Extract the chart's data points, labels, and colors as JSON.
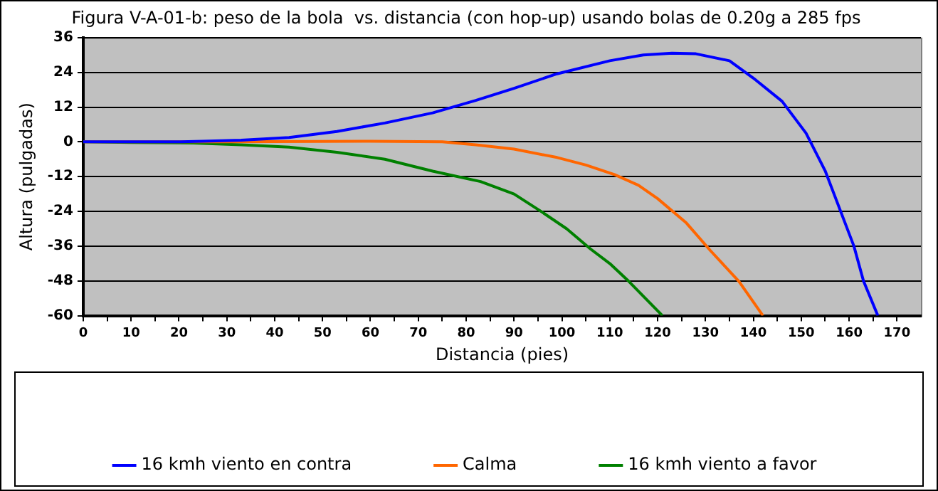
{
  "chart_data": {
    "type": "line",
    "title": "Figura V-A-01-b: peso de la bola  vs. distancia (con hop-up) usando bolas de 0.20g a 285 fps",
    "xlabel": "Distancia (pies)",
    "ylabel": "Altura (pulgadas)",
    "xlim": [
      0,
      175
    ],
    "xticks": [
      0,
      {
        "value": 5,
        "label": null
      },
      10,
      {
        "value": 15,
        "label": null
      },
      20,
      {
        "value": 25,
        "label": null
      },
      30,
      {
        "value": 35,
        "label": null
      },
      40,
      {
        "value": 45,
        "label": null
      },
      50,
      {
        "value": 55,
        "label": null
      },
      60,
      {
        "value": 65,
        "label": null
      },
      70,
      {
        "value": 75,
        "label": null
      },
      80,
      {
        "value": 85,
        "label": null
      },
      90,
      {
        "value": 95,
        "label": null
      },
      100,
      {
        "value": 105,
        "label": null
      },
      110,
      {
        "value": 115,
        "label": null
      },
      120,
      {
        "value": 125,
        "label": null
      },
      130,
      {
        "value": 135,
        "label": null
      },
      140,
      {
        "value": 145,
        "label": null
      },
      150,
      {
        "value": 155,
        "label": null
      },
      160,
      {
        "value": 165,
        "label": null
      },
      170
    ],
    "ylim": [
      -60,
      36
    ],
    "yticks": [
      -60,
      -48,
      -36,
      -24,
      -12,
      0,
      12,
      24,
      36
    ],
    "grid": "y",
    "legend": "bottom",
    "marker": "none",
    "line_style": "solid",
    "series": [
      {
        "name": "16 kmh viento en contra",
        "color": "#0000ff",
        "x": [
          0,
          10,
          20,
          25,
          33,
          43,
          53,
          63,
          73,
          82,
          90,
          99,
          110,
          117,
          123,
          128,
          135,
          140,
          146,
          151,
          155,
          161,
          163,
          166
        ],
        "values": [
          0,
          0,
          0,
          0.2,
          0.6,
          1.5,
          3.6,
          6.5,
          10,
          14.3,
          18.5,
          23.5,
          28,
          30,
          30.6,
          30.4,
          28,
          22,
          14,
          3,
          -10,
          -36,
          -48,
          -60
        ]
      },
      {
        "name": "Calma",
        "color": "#ff6600",
        "x": [
          0,
          10,
          30,
          60,
          75,
          82,
          90,
          99,
          105,
          111,
          116,
          120,
          126,
          131,
          137,
          142
        ],
        "values": [
          0,
          0,
          0,
          0.2,
          0,
          -1,
          -2.5,
          -5.4,
          -8,
          -11.3,
          -15,
          -19.6,
          -28,
          -37.5,
          -48.2,
          -60
        ]
      },
      {
        "name": "16 kmh viento a favor",
        "color": "#008000",
        "x": [
          0,
          10,
          23,
          33,
          43,
          53,
          63,
          73,
          83,
          90,
          96,
          101,
          106,
          110,
          114,
          121
        ],
        "values": [
          0,
          -0.2,
          -0.4,
          -1,
          -1.8,
          -3.6,
          -6,
          -10.1,
          -13.7,
          -18,
          -24.4,
          -30,
          -37,
          -42,
          -48.2,
          -60
        ]
      }
    ]
  }
}
